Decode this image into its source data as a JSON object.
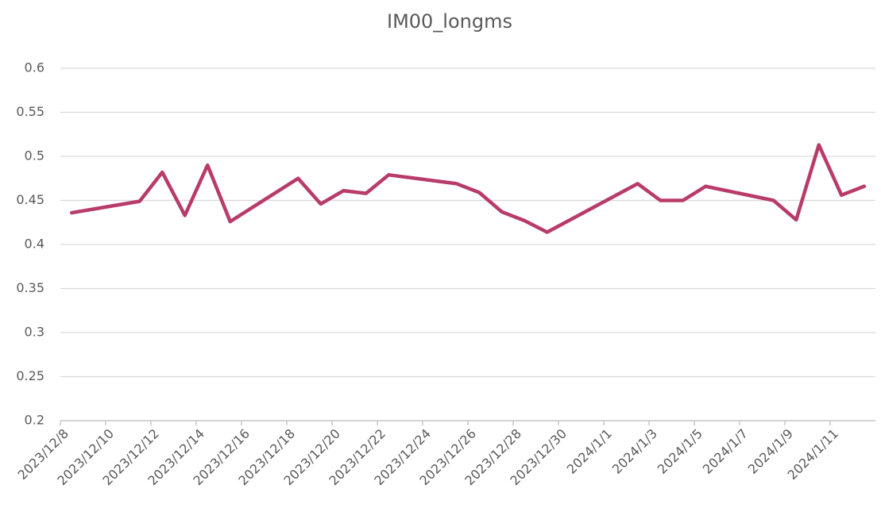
{
  "chart_data": {
    "type": "line",
    "title": "IM00_longms",
    "x": [
      "2023/12/8",
      "2023/12/11",
      "2023/12/12",
      "2023/12/13",
      "2023/12/14",
      "2023/12/15",
      "2023/12/18",
      "2023/12/19",
      "2023/12/20",
      "2023/12/21",
      "2023/12/22",
      "2023/12/25",
      "2023/12/26",
      "2023/12/27",
      "2023/12/28",
      "2023/12/29",
      "2024/1/2",
      "2024/1/3",
      "2024/1/4",
      "2024/1/5",
      "2024/1/8",
      "2024/1/9",
      "2024/1/10",
      "2024/1/11",
      "2024/1/12"
    ],
    "series": [
      {
        "color": "#b83b68",
        "values": [
          0.436,
          0.449,
          0.482,
          0.433,
          0.49,
          0.426,
          0.475,
          0.446,
          0.461,
          0.458,
          0.479,
          0.469,
          0.459,
          0.437,
          0.427,
          0.414,
          0.469,
          0.45,
          0.45,
          0.466,
          0.45,
          0.428,
          0.513,
          0.456,
          0.466
        ]
      }
    ],
    "xlim": [
      "2023/12/8",
      "2024/1/12"
    ],
    "xticks": [
      "2023/12/8",
      "2023/12/10",
      "2023/12/12",
      "2023/12/14",
      "2023/12/16",
      "2023/12/18",
      "2023/12/20",
      "2023/12/22",
      "2023/12/24",
      "2023/12/26",
      "2023/12/28",
      "2023/12/30",
      "2024/1/1",
      "2024/1/3",
      "2024/1/5",
      "2024/1/7",
      "2024/1/9",
      "2024/1/11"
    ],
    "ylim": [
      0.2,
      0.6
    ],
    "yticks": [
      0.2,
      0.25,
      0.3,
      0.35,
      0.4,
      0.45,
      0.5,
      0.55,
      0.6
    ],
    "grid": true
  }
}
